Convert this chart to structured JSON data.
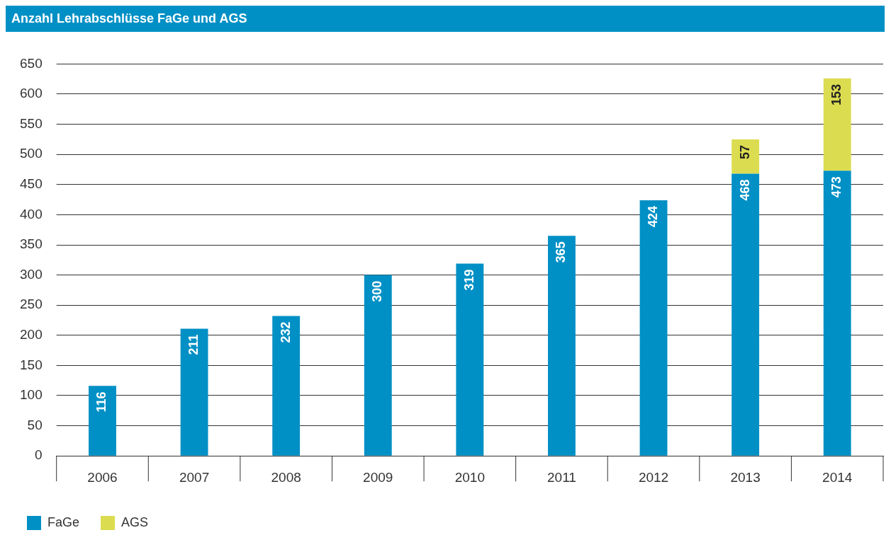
{
  "chart_data": {
    "type": "bar",
    "title": "Anzahl Lehrabschlüsse FaGe und AGS",
    "categories": [
      "2006",
      "2007",
      "2008",
      "2009",
      "2010",
      "2011",
      "2012",
      "2013",
      "2014"
    ],
    "series": [
      {
        "name": "FaGe",
        "color": "#0090c5",
        "values": [
          116,
          211,
          232,
          300,
          319,
          365,
          424,
          468,
          473
        ]
      },
      {
        "name": "AGS",
        "color": "#dcdc50",
        "values": [
          null,
          null,
          null,
          null,
          null,
          null,
          null,
          57,
          153
        ]
      }
    ],
    "stacked": true,
    "ylim": [
      0,
      650
    ],
    "yticks": [
      0,
      50,
      100,
      150,
      200,
      250,
      300,
      350,
      400,
      450,
      500,
      550,
      600,
      650
    ],
    "grid": "y",
    "legend": "bottom left",
    "data_labels": true
  }
}
